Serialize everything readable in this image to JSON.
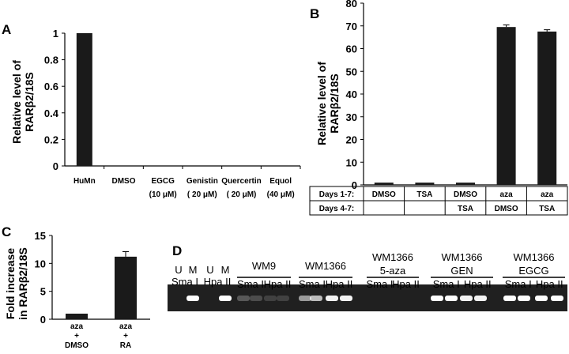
{
  "chart_data": [
    {
      "panel": "A",
      "type": "bar",
      "ylabel_line1": "Relative level of",
      "ylabel_line2": "RARβ2/18S",
      "ylim": [
        0,
        1
      ],
      "yticks": [
        "0",
        "0.2",
        "0.4",
        "0.6",
        "0.8",
        "1"
      ],
      "categories": [
        {
          "name": "HuMn",
          "dose": ""
        },
        {
          "name": "DMSO",
          "dose": ""
        },
        {
          "name": "EGCG",
          "dose": "(10 μM)"
        },
        {
          "name": "Genistin",
          "dose": "( 20 μM)"
        },
        {
          "name": "Quercertin",
          "dose": "( 20 μM)"
        },
        {
          "name": "Equol",
          "dose": "(40 μM)"
        }
      ],
      "values": [
        1.0,
        0,
        0,
        0,
        0,
        0
      ]
    },
    {
      "panel": "B",
      "type": "bar",
      "ylabel_line1": "Relative level of",
      "ylabel_line2": "RARβ2/18S",
      "ylim": [
        0,
        80
      ],
      "yticks": [
        "0",
        "10",
        "20",
        "30",
        "40",
        "50",
        "60",
        "70",
        "80"
      ],
      "values": [
        1,
        1,
        1,
        69.5,
        67.5
      ],
      "errors": [
        0,
        0,
        0,
        0.9,
        0.8
      ],
      "table": {
        "row1_label": "Days 1-7:",
        "row2_label": "Days 4-7:",
        "row1": [
          "DMSO",
          "TSA",
          "DMSO",
          "aza",
          "aza"
        ],
        "row2": [
          "",
          "",
          "TSA",
          "DMSO",
          "TSA"
        ]
      }
    },
    {
      "panel": "C",
      "type": "bar",
      "ylabel_line1": "Fold increase",
      "ylabel_line2": "in RARβ2/18S",
      "ylim": [
        0,
        15
      ],
      "yticks": [
        "0",
        "5",
        "10",
        "15"
      ],
      "categories": [
        {
          "l1": "aza",
          "l2": "+",
          "l3": "DMSO"
        },
        {
          "l1": "aza",
          "l2": "+",
          "l3": "RA"
        }
      ],
      "values": [
        1,
        11.2
      ],
      "errors": [
        0,
        0.9
      ]
    }
  ],
  "gel": {
    "panel": "D",
    "groups": [
      {
        "title": "",
        "subtitle": "",
        "cols": [
          "U",
          "M"
        ],
        "enzyme": "Sma I"
      },
      {
        "title": "",
        "subtitle": "",
        "cols": [
          "U",
          "M"
        ],
        "enzyme": "Hpa II"
      },
      {
        "title": "WM9",
        "subtitle": "",
        "enzymes": [
          "Sma I",
          "Hpa II"
        ]
      },
      {
        "title": "WM1366",
        "subtitle": "",
        "enzymes": [
          "Sma I",
          "Hpa II"
        ]
      },
      {
        "title": "WM1366",
        "subtitle": "5-aza",
        "enzymes": [
          "Sma I",
          "Hpa II"
        ]
      },
      {
        "title": "WM1366",
        "subtitle": "GEN",
        "enzymes": [
          "Sma I",
          "Hpa II"
        ]
      },
      {
        "title": "WM1366",
        "subtitle": "EGCG",
        "enzymes": [
          "Sma I",
          "Hpa II"
        ]
      }
    ]
  }
}
